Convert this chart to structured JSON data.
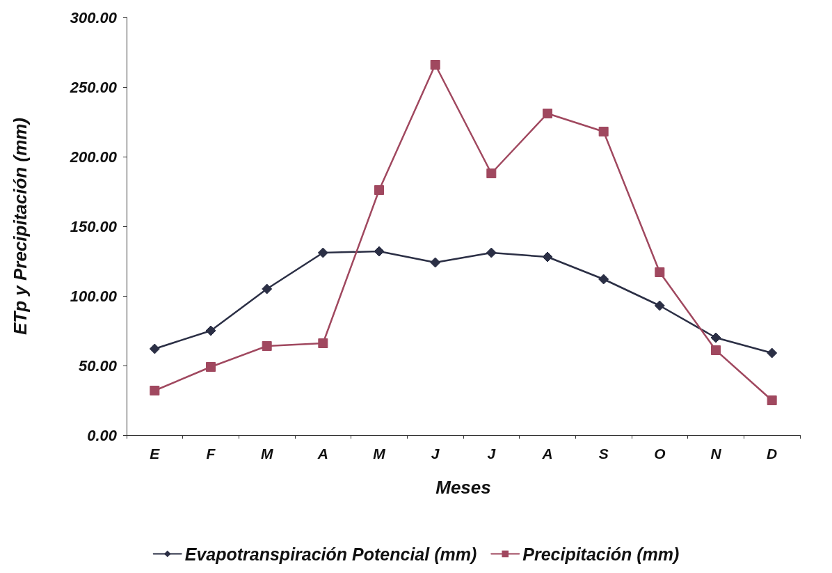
{
  "chart_data": {
    "type": "line",
    "xlabel": "Meses",
    "ylabel": "ETp y Precipitación (mm)",
    "categories": [
      "E",
      "F",
      "M",
      "A",
      "M",
      "J",
      "J",
      "A",
      "S",
      "O",
      "N",
      "D"
    ],
    "series": [
      {
        "name": "Evapotranspiración Potencial (mm)",
        "color": "#2b2f45",
        "marker": "diamond",
        "values": [
          62,
          75,
          105,
          131,
          132,
          124,
          131,
          128,
          112,
          93,
          70,
          59
        ]
      },
      {
        "name": "Precipitación (mm)",
        "color": "#a0485f",
        "marker": "square",
        "values": [
          32,
          49,
          64,
          66,
          176,
          266,
          188,
          231,
          218,
          117,
          61,
          25
        ]
      }
    ],
    "ylim": [
      0,
      300
    ],
    "yticks": [
      {
        "value": 0,
        "label": "0.00"
      },
      {
        "value": 50,
        "label": "50.00"
      },
      {
        "value": 100,
        "label": "100.00"
      },
      {
        "value": 150,
        "label": "150.00"
      },
      {
        "value": 200,
        "label": "200.00"
      },
      {
        "value": 250,
        "label": "250.00"
      },
      {
        "value": 300,
        "label": "300.00"
      }
    ],
    "grid": false,
    "legend": "bottom",
    "line_style": "solid"
  }
}
